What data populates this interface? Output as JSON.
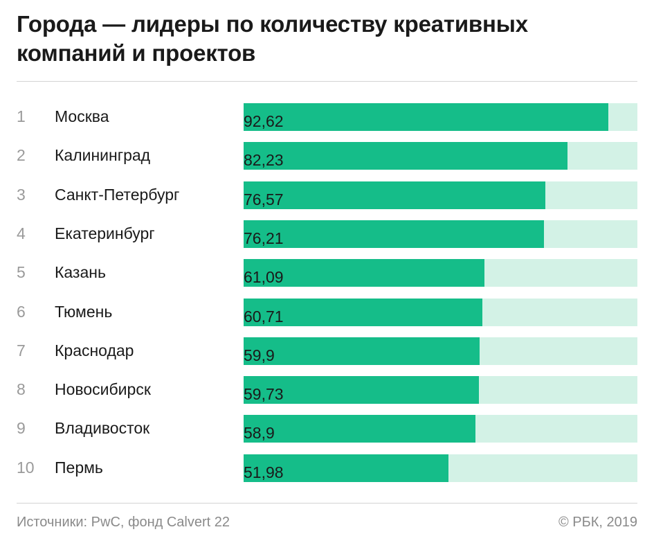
{
  "title": "Города — лидеры по количеству креативных компаний и проектов",
  "source": "Источники: PwC, фонд Calvert 22",
  "copyright": "© РБК, 2019",
  "colors": {
    "bar": "#15bd89",
    "track": "#d3f2e6"
  },
  "chart_data": {
    "type": "bar",
    "orientation": "horizontal",
    "title": "Города — лидеры по количеству креативных компаний и проектов",
    "ranks": [
      "1",
      "2",
      "3",
      "4",
      "5",
      "6",
      "7",
      "8",
      "9",
      "10"
    ],
    "categories": [
      "Москва",
      "Калининград",
      "Санкт-Петербург",
      "Екатеринбург",
      "Казань",
      "Тюмень",
      "Краснодар",
      "Новосибирск",
      "Владивосток",
      "Пермь"
    ],
    "values": [
      92.62,
      82.23,
      76.57,
      76.21,
      61.09,
      60.71,
      59.9,
      59.73,
      58.9,
      51.98
    ],
    "value_labels": [
      "92,62",
      "82,23",
      "76,57",
      "76,21",
      "61,09",
      "60,71",
      "59,9",
      "59,73",
      "58,9",
      "51,98"
    ],
    "xlim": [
      0,
      100
    ],
    "grid": false,
    "legend": "none"
  }
}
